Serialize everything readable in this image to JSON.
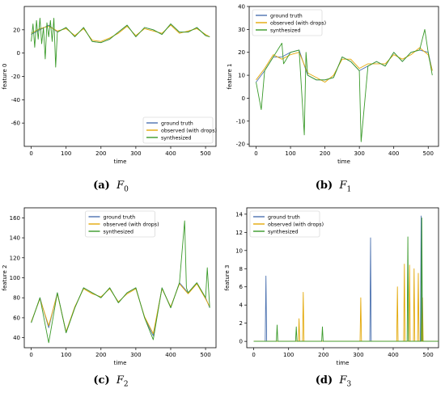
{
  "figure": {
    "colors": {
      "ground_truth": "#4c72b0",
      "observed": "#e3a808",
      "synthesized": "#3a9a2a"
    },
    "captions": [
      {
        "label": "(a)",
        "var": "F",
        "sub": "0"
      },
      {
        "label": "(b)",
        "var": "F",
        "sub": "1"
      },
      {
        "label": "(c)",
        "var": "F",
        "sub": "2"
      },
      {
        "label": "(d)",
        "var": "F",
        "sub": "3"
      }
    ]
  },
  "chart_data": [
    {
      "type": "line",
      "xlabel": "time",
      "ylabel": "feature 0",
      "xlim": [
        -20,
        530
      ],
      "ylim": [
        -80,
        40
      ],
      "xticks": [
        0,
        100,
        200,
        300,
        400,
        500
      ],
      "yticks": [
        -60,
        -40,
        -20,
        0,
        20
      ],
      "legend_position": "lower-right",
      "series": [
        {
          "name": "ground truth",
          "color_key": "ground_truth",
          "x": [
            0,
            25,
            50,
            75,
            100,
            125,
            150,
            175,
            200,
            225,
            250,
            275,
            300,
            325,
            350,
            375,
            400,
            425,
            450,
            475,
            500,
            512
          ],
          "values": [
            16,
            20,
            24,
            18,
            22,
            14,
            22,
            10,
            9,
            12,
            18,
            24,
            14,
            22,
            20,
            16,
            25,
            18,
            18,
            22,
            15,
            14
          ]
        },
        {
          "name": "observed (with drops)",
          "color_key": "observed",
          "x": [
            0,
            25,
            50,
            75,
            100,
            125,
            150,
            175,
            200,
            225,
            250,
            275,
            300,
            325,
            350,
            375,
            400,
            425,
            450,
            475,
            500,
            512
          ],
          "values": [
            17,
            21,
            23,
            19,
            21,
            15,
            21,
            11,
            10,
            13,
            17,
            23,
            15,
            21,
            19,
            17,
            24,
            17,
            19,
            21,
            16,
            14
          ]
        },
        {
          "name": "synthesized",
          "color_key": "synthesized",
          "x": [
            0,
            5,
            10,
            15,
            20,
            25,
            30,
            35,
            40,
            45,
            50,
            55,
            60,
            65,
            70,
            75,
            100,
            125,
            150,
            175,
            200,
            225,
            250,
            275,
            300,
            325,
            350,
            375,
            400,
            425,
            450,
            475,
            500,
            512
          ],
          "values": [
            10,
            25,
            5,
            28,
            12,
            30,
            8,
            22,
            -5,
            26,
            14,
            28,
            10,
            30,
            -12,
            18,
            22,
            14,
            22,
            10,
            9,
            12,
            18,
            24,
            14,
            22,
            20,
            16,
            25,
            18,
            18,
            22,
            15,
            14
          ]
        }
      ]
    },
    {
      "type": "line",
      "xlabel": "time",
      "ylabel": "feature 1",
      "xlim": [
        -20,
        530
      ],
      "ylim": [
        -21,
        40
      ],
      "xticks": [
        0,
        100,
        200,
        300,
        400,
        500
      ],
      "yticks": [
        -20,
        -10,
        0,
        10,
        20,
        30,
        40
      ],
      "legend_position": "upper-left",
      "series": [
        {
          "name": "ground truth",
          "color_key": "ground_truth",
          "x": [
            0,
            25,
            50,
            75,
            100,
            125,
            150,
            175,
            200,
            225,
            250,
            275,
            300,
            325,
            350,
            375,
            400,
            425,
            450,
            475,
            500,
            512
          ],
          "values": [
            7,
            12,
            18,
            18,
            20,
            21,
            10,
            8,
            8,
            9,
            18,
            16,
            12,
            14,
            16,
            14,
            20,
            16,
            20,
            21,
            20,
            12
          ]
        },
        {
          "name": "observed (with drops)",
          "color_key": "observed",
          "x": [
            0,
            25,
            50,
            75,
            100,
            125,
            150,
            175,
            200,
            225,
            250,
            275,
            300,
            325,
            350,
            375,
            400,
            425,
            450,
            475,
            500,
            512
          ],
          "values": [
            8,
            13,
            19,
            17,
            19,
            20,
            11,
            9,
            7,
            10,
            17,
            17,
            13,
            15,
            15,
            15,
            19,
            17,
            19,
            22,
            19,
            12
          ]
        },
        {
          "name": "synthesized",
          "color_key": "synthesized",
          "x": [
            0,
            15,
            25,
            50,
            75,
            80,
            100,
            125,
            140,
            145,
            150,
            175,
            200,
            225,
            250,
            275,
            300,
            305,
            325,
            350,
            375,
            400,
            425,
            450,
            475,
            490,
            500,
            512
          ],
          "values": [
            7,
            -5,
            12,
            18,
            24,
            15,
            20,
            21,
            -16,
            20,
            10,
            8,
            8,
            9,
            18,
            16,
            12,
            -19,
            14,
            16,
            14,
            20,
            16,
            20,
            21,
            30,
            20,
            10
          ]
        }
      ]
    },
    {
      "type": "line",
      "xlabel": "time",
      "ylabel": "feature 2",
      "xlim": [
        -20,
        530
      ],
      "ylim": [
        30,
        170
      ],
      "xticks": [
        0,
        100,
        200,
        300,
        400,
        500
      ],
      "yticks": [
        40,
        60,
        80,
        100,
        120,
        140,
        160
      ],
      "legend_position": "upper-center",
      "series": [
        {
          "name": "ground truth",
          "color_key": "ground_truth",
          "x": [
            0,
            25,
            50,
            75,
            100,
            125,
            150,
            175,
            200,
            225,
            250,
            275,
            300,
            325,
            350,
            375,
            400,
            425,
            450,
            475,
            500,
            512
          ],
          "values": [
            55,
            80,
            50,
            85,
            45,
            70,
            90,
            85,
            80,
            90,
            75,
            85,
            90,
            60,
            42,
            90,
            70,
            95,
            85,
            95,
            80,
            70
          ]
        },
        {
          "name": "observed (with drops)",
          "color_key": "observed",
          "x": [
            0,
            25,
            50,
            75,
            100,
            125,
            150,
            175,
            200,
            225,
            250,
            275,
            300,
            325,
            350,
            375,
            400,
            425,
            450,
            475,
            500,
            512
          ],
          "values": [
            56,
            79,
            52,
            84,
            46,
            71,
            89,
            84,
            81,
            89,
            76,
            84,
            89,
            61,
            44,
            89,
            71,
            94,
            84,
            94,
            79,
            71
          ]
        },
        {
          "name": "synthesized",
          "color_key": "synthesized",
          "x": [
            0,
            25,
            50,
            75,
            100,
            125,
            150,
            175,
            200,
            225,
            250,
            275,
            300,
            325,
            350,
            375,
            400,
            425,
            440,
            445,
            450,
            475,
            500,
            505,
            512
          ],
          "values": [
            55,
            80,
            35,
            85,
            45,
            70,
            90,
            85,
            80,
            90,
            75,
            85,
            90,
            60,
            38,
            90,
            70,
            95,
            157,
            90,
            85,
            95,
            80,
            110,
            70
          ]
        }
      ]
    },
    {
      "type": "line",
      "xlabel": "time",
      "ylabel": "feature 3",
      "xlim": [
        -20,
        530
      ],
      "ylim": [
        -0.7,
        14.7
      ],
      "xticks": [
        0,
        100,
        200,
        300,
        400,
        500
      ],
      "yticks": [
        0,
        2,
        4,
        6,
        8,
        10,
        12,
        14
      ],
      "legend_position": "upper-left",
      "series": [
        {
          "name": "ground truth",
          "color_key": "ground_truth",
          "x": [
            0,
            33,
            35,
            37,
            330,
            333,
            335,
            337,
            478,
            480,
            482,
            530
          ],
          "values": [
            0,
            0,
            7.2,
            0,
            0,
            0,
            11.4,
            0,
            0,
            13.8,
            0,
            0
          ]
        },
        {
          "name": "observed (with drops)",
          "color_key": "observed",
          "x": [
            0,
            128,
            130,
            132,
            140,
            142,
            144,
            305,
            307,
            309,
            410,
            412,
            414,
            430,
            432,
            434,
            445,
            447,
            449,
            458,
            460,
            462,
            470,
            472,
            474,
            482,
            484,
            486,
            530
          ],
          "values": [
            0,
            0,
            2.5,
            0,
            0,
            5.4,
            0,
            0,
            4.8,
            0,
            0,
            6,
            0,
            0,
            8.5,
            0,
            0,
            8.4,
            0,
            0,
            8,
            0,
            0,
            7.5,
            0,
            0,
            4.8,
            0,
            0
          ]
        },
        {
          "name": "synthesized",
          "color_key": "synthesized",
          "x": [
            0,
            65,
            67,
            69,
            120,
            122,
            124,
            195,
            197,
            199,
            440,
            442,
            444,
            470,
            480,
            482,
            484,
            530
          ],
          "values": [
            0,
            0,
            1.8,
            0,
            0,
            1.6,
            0,
            0,
            1.6,
            0,
            0,
            11.5,
            0,
            0,
            0,
            13.6,
            0,
            0
          ]
        }
      ]
    }
  ]
}
